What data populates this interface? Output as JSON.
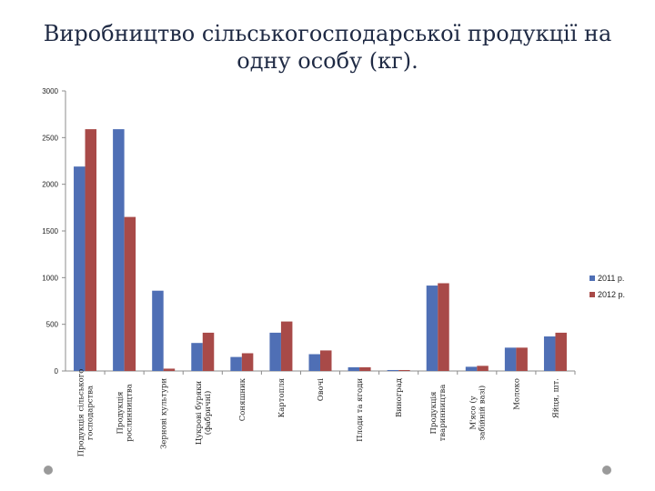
{
  "slide": {
    "title_line1": "Виробництво сільськогосподарської продукції на",
    "title_line2": "одну особу (кг)."
  },
  "chart_data": {
    "type": "bar",
    "title": "Виробництво сільськогосподарської продукції на одну особу (кг).",
    "xlabel": "",
    "ylabel": "",
    "ylim": [
      0,
      3000
    ],
    "yticks": [
      0,
      500,
      1000,
      1500,
      2000,
      2500,
      3000
    ],
    "grid": false,
    "legend_position": "right",
    "categories": [
      "Продукція сільського господарства",
      "Продукція рослинництва",
      "Зернові культури",
      "Цукрові буряки (фабричні)",
      "Соняшник",
      "Картопля",
      "Овочі",
      "Плоди та ягоди",
      "Виноград",
      "Продукція тваринництва",
      "М'ясо (у забійній вазі)",
      "Молоко",
      "Яйця, шт."
    ],
    "series": [
      {
        "name": "2011 р.",
        "color": "#4f6fb5",
        "values": [
          2190,
          2590,
          860,
          300,
          150,
          410,
          180,
          40,
          10,
          915,
          45,
          250,
          370
        ]
      },
      {
        "name": "2012 р.",
        "color": "#a84a48",
        "values": [
          2590,
          1650,
          25,
          410,
          190,
          530,
          220,
          40,
          10,
          940,
          55,
          250,
          410
        ]
      }
    ]
  }
}
